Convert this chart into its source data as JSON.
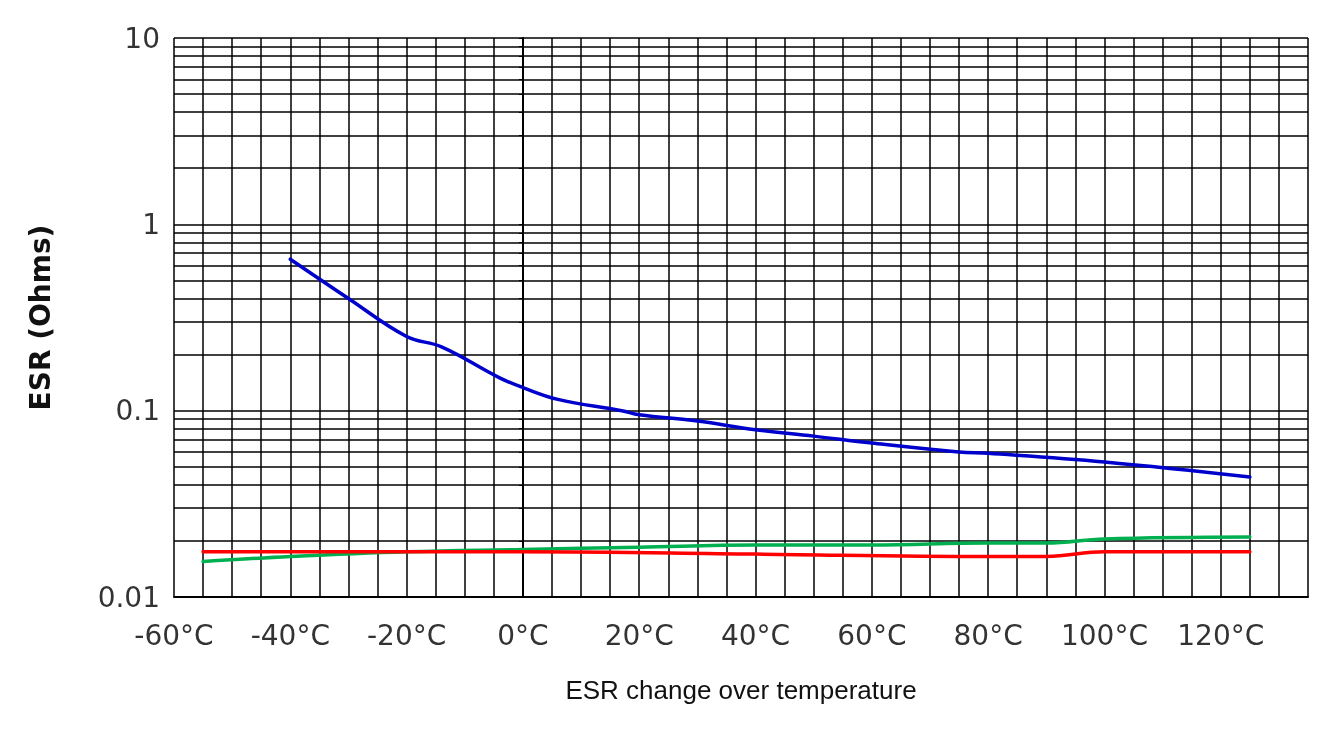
{
  "chart_data": {
    "type": "line",
    "xlabel": "ESR change over temperature",
    "ylabel": "ESR (Ohms)",
    "log": "y",
    "grid": true,
    "legend": false,
    "marker": "none",
    "line_style": "solid",
    "xlim": [
      -60,
      135
    ],
    "xticks": [
      {
        "value": -60,
        "label": "-60°C"
      },
      {
        "value": -55,
        "label": null
      },
      {
        "value": -50,
        "label": null
      },
      {
        "value": -45,
        "label": null
      },
      {
        "value": -40,
        "label": "-40°C"
      },
      {
        "value": -35,
        "label": null
      },
      {
        "value": -30,
        "label": null
      },
      {
        "value": -25,
        "label": null
      },
      {
        "value": -20,
        "label": "-20°C"
      },
      {
        "value": -15,
        "label": null
      },
      {
        "value": -10,
        "label": null
      },
      {
        "value": -5,
        "label": null
      },
      {
        "value": 0,
        "label": "0°C"
      },
      {
        "value": 5,
        "label": null
      },
      {
        "value": 10,
        "label": null
      },
      {
        "value": 15,
        "label": null
      },
      {
        "value": 20,
        "label": "20°C"
      },
      {
        "value": 25,
        "label": null
      },
      {
        "value": 30,
        "label": null
      },
      {
        "value": 35,
        "label": null
      },
      {
        "value": 40,
        "label": "40°C"
      },
      {
        "value": 45,
        "label": null
      },
      {
        "value": 50,
        "label": null
      },
      {
        "value": 55,
        "label": null
      },
      {
        "value": 60,
        "label": "60°C"
      },
      {
        "value": 65,
        "label": null
      },
      {
        "value": 70,
        "label": null
      },
      {
        "value": 75,
        "label": null
      },
      {
        "value": 80,
        "label": "80°C"
      },
      {
        "value": 85,
        "label": null
      },
      {
        "value": 90,
        "label": null
      },
      {
        "value": 95,
        "label": null
      },
      {
        "value": 100,
        "label": "100°C"
      },
      {
        "value": 105,
        "label": null
      },
      {
        "value": 110,
        "label": null
      },
      {
        "value": 115,
        "label": null
      },
      {
        "value": 120,
        "label": "120°C"
      },
      {
        "value": 125,
        "label": null
      },
      {
        "value": 130,
        "label": null
      },
      {
        "value": 135,
        "label": null
      }
    ],
    "ylim": [
      0.01,
      10
    ],
    "yticks": [
      0.01,
      {
        "value": 0.02,
        "label": null
      },
      {
        "value": 0.03,
        "label": null
      },
      {
        "value": 0.04,
        "label": null
      },
      {
        "value": 0.05,
        "label": null
      },
      {
        "value": 0.06,
        "label": null
      },
      {
        "value": 0.07,
        "label": null
      },
      {
        "value": 0.08,
        "label": null
      },
      {
        "value": 0.09,
        "label": null
      },
      0.1,
      {
        "value": 0.2,
        "label": null
      },
      {
        "value": 0.3,
        "label": null
      },
      {
        "value": 0.4,
        "label": null
      },
      {
        "value": 0.5,
        "label": null
      },
      {
        "value": 0.6,
        "label": null
      },
      {
        "value": 0.7,
        "label": null
      },
      {
        "value": 0.8,
        "label": null
      },
      {
        "value": 0.9,
        "label": null
      },
      1,
      {
        "value": 2,
        "label": null
      },
      {
        "value": 3,
        "label": null
      },
      {
        "value": 4,
        "label": null
      },
      {
        "value": 5,
        "label": null
      },
      {
        "value": 6,
        "label": null
      },
      {
        "value": 7,
        "label": null
      },
      {
        "value": 8,
        "label": null
      },
      {
        "value": 9,
        "label": null
      },
      10
    ],
    "series": [
      {
        "color": "#0000cc",
        "x": [
          -40,
          -30,
          -20,
          -14,
          -4,
          0,
          6,
          17,
          20,
          30,
          40,
          50,
          60,
          75,
          80,
          100,
          125
        ],
        "values": [
          0.65,
          0.4,
          0.25,
          0.22,
          0.15,
          0.133,
          0.115,
          0.1,
          0.095,
          0.088,
          0.079,
          0.073,
          0.067,
          0.06,
          0.059,
          0.053,
          0.044
        ]
      },
      {
        "color": "#00b050",
        "x": [
          -55,
          -40,
          -20,
          0,
          20,
          40,
          60,
          80,
          90,
          100,
          125
        ],
        "values": [
          0.0155,
          0.0165,
          0.0175,
          0.018,
          0.0185,
          0.019,
          0.019,
          0.0195,
          0.0195,
          0.0205,
          0.021
        ]
      },
      {
        "color": "#ff0000",
        "x": [
          -55,
          -20,
          0,
          40,
          80,
          90,
          100,
          125
        ],
        "values": [
          0.0175,
          0.0175,
          0.0175,
          0.017,
          0.0165,
          0.0165,
          0.0175,
          0.0175
        ]
      }
    ]
  }
}
